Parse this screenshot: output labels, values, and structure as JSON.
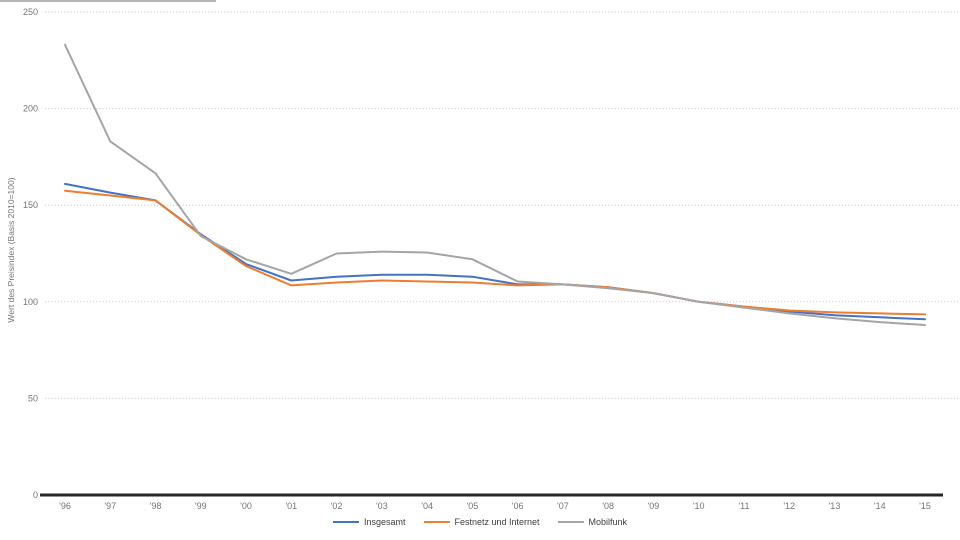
{
  "chart_data": {
    "type": "line",
    "title": "",
    "xlabel": "",
    "ylabel": "Wert des Preisindex (Basis 2010=100)",
    "ylim": [
      0,
      250
    ],
    "y_ticks": [
      0,
      50,
      100,
      150,
      200,
      250
    ],
    "grid": "horizontal-dotted",
    "legend_position": "bottom-center",
    "x_tick_labels": [
      "'96",
      "'97",
      "'98",
      "'99",
      "'00",
      "'01",
      "'02",
      "'03",
      "'04",
      "'05",
      "'06",
      "'07",
      "'08",
      "'09",
      "'10",
      "'11",
      "'12",
      "'13",
      "'14",
      "'15"
    ],
    "series": [
      {
        "name": "Insgesamt",
        "color": "#4472C4",
        "values": [
          161,
          156.5,
          152.5,
          135,
          119.5,
          111,
          113,
          114,
          114,
          113,
          109,
          109,
          107.5,
          104.5,
          100,
          97.5,
          95,
          93,
          92,
          91
        ]
      },
      {
        "name": "Festnetz und Internet",
        "color": "#ED7D31",
        "values": [
          157.5,
          155,
          152.5,
          134.5,
          118.5,
          108.5,
          110,
          111,
          110.5,
          110,
          108.5,
          109,
          107.5,
          104.5,
          100,
          97.5,
          95.5,
          94.5,
          94,
          93.5
        ]
      },
      {
        "name": "Mobilfunk",
        "color": "#A5A5A5",
        "values": [
          233,
          183,
          166.5,
          134,
          122,
          114.5,
          125,
          126,
          125.5,
          122,
          110.5,
          109,
          107,
          104.5,
          100,
          97,
          94,
          91.5,
          89.5,
          88
        ]
      }
    ]
  },
  "colors": {
    "background": "#ffffff",
    "gridline": "#c4c4c4",
    "axis_line": "#262626",
    "tick_text": "#757575",
    "axis_title_text": "#757575",
    "legend_text": "#404040"
  }
}
